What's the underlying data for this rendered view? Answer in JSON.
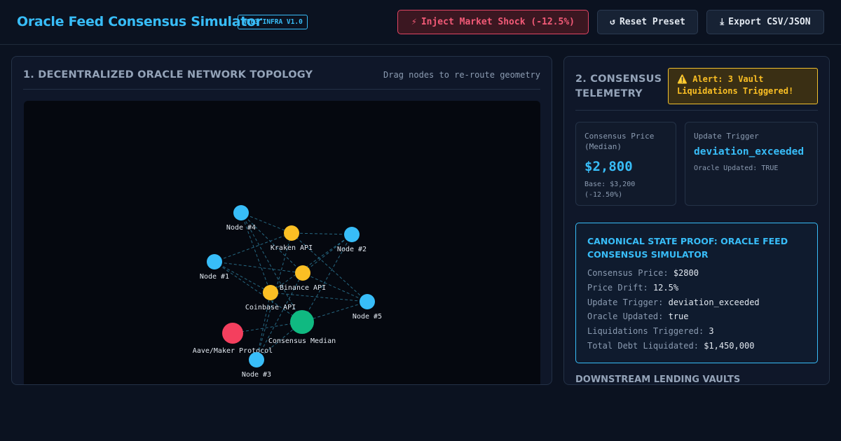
{
  "header": {
    "title": "Oracle Feed Consensus Simulator",
    "version_badge": "WEB3 INFRA V1.0",
    "shock_button": "Inject Market Shock (-12.5%)",
    "shock_icon": "lightning-icon",
    "reset_button": "Reset Preset",
    "reset_icon": "reset-icon",
    "export_button": "Export CSV/JSON",
    "export_icon": "download-icon"
  },
  "topology": {
    "title": "1. DECENTRALIZED ORACLE NETWORK TOPOLOGY",
    "hint": "Drag nodes to re-route geometry",
    "nodes": [
      {
        "id": "node4",
        "label": "Node #4",
        "kind": "node"
      },
      {
        "id": "kraken",
        "label": "Kraken API",
        "kind": "api"
      },
      {
        "id": "node2",
        "label": "Node #2",
        "kind": "node"
      },
      {
        "id": "node1",
        "label": "Node #1",
        "kind": "node"
      },
      {
        "id": "binance",
        "label": "Binance API",
        "kind": "api"
      },
      {
        "id": "coinbase",
        "label": "Coinbase API",
        "kind": "api"
      },
      {
        "id": "node5",
        "label": "Node #5",
        "kind": "node"
      },
      {
        "id": "median",
        "label": "Consensus Median",
        "kind": "median"
      },
      {
        "id": "aave",
        "label": "Aave/Maker Protocol",
        "kind": "protocol"
      },
      {
        "id": "node3",
        "label": "Node #3",
        "kind": "node"
      }
    ],
    "edges": [
      [
        "node4",
        "kraken"
      ],
      [
        "node4",
        "binance"
      ],
      [
        "node4",
        "coinbase"
      ],
      [
        "node4",
        "median"
      ],
      [
        "node2",
        "kraken"
      ],
      [
        "node2",
        "binance"
      ],
      [
        "node2",
        "coinbase"
      ],
      [
        "node2",
        "median"
      ],
      [
        "node1",
        "kraken"
      ],
      [
        "node1",
        "binance"
      ],
      [
        "node1",
        "coinbase"
      ],
      [
        "node1",
        "median"
      ],
      [
        "node5",
        "kraken"
      ],
      [
        "node5",
        "binance"
      ],
      [
        "node5",
        "coinbase"
      ],
      [
        "node5",
        "median"
      ],
      [
        "node3",
        "kraken"
      ],
      [
        "node3",
        "binance"
      ],
      [
        "node3",
        "coinbase"
      ],
      [
        "node3",
        "median"
      ],
      [
        "median",
        "aave"
      ]
    ],
    "colors": {
      "node": "#38bdf8",
      "api": "#fbbf24",
      "median": "#10b981",
      "protocol": "#f43f5e",
      "edge": "#2f7f9e"
    }
  },
  "telemetry": {
    "title": "2. CONSENSUS TELEMETRY",
    "alert_icon": "warning-icon",
    "alert": "Alert: 3 Vault Liquidations Triggered!",
    "price_label": "Consensus Price (Median)",
    "price_value": "$2,800",
    "price_base": "Base: $3,200 (-12.50%)",
    "trigger_label": "Update Trigger",
    "trigger_value": "deviation_exceeded",
    "trigger_sub": "Oracle Updated: TRUE"
  },
  "proof": {
    "title": "CANONICAL STATE PROOF: ORACLE FEED CONSENSUS SIMULATOR",
    "rows": [
      {
        "key": "Consensus Price:",
        "value": "$2800"
      },
      {
        "key": "Price Drift:",
        "value": "12.5%"
      },
      {
        "key": "Update Trigger:",
        "value": "deviation_exceeded"
      },
      {
        "key": "Oracle Updated:",
        "value": "true"
      },
      {
        "key": "Liquidations Triggered:",
        "value": "3"
      },
      {
        "key": "Total Debt Liquidated:",
        "value": "$1,450,000"
      }
    ]
  },
  "vaults": {
    "title": "DOWNSTREAM LENDING VAULTS"
  }
}
